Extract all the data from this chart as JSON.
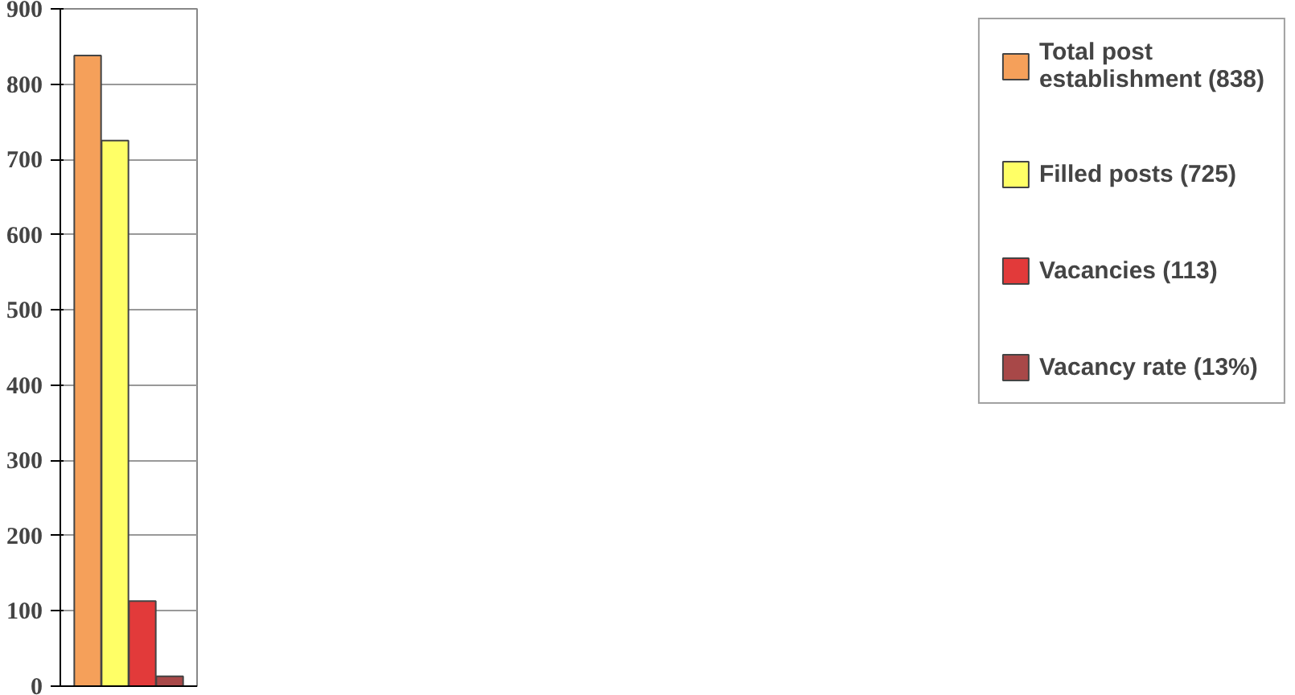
{
  "chart_data": {
    "type": "bar",
    "categories": [
      null
    ],
    "series": [
      {
        "name": "Total post establishment (838)",
        "color": "#f5a05a",
        "values": [
          838
        ]
      },
      {
        "name": "Filled posts (725)",
        "color": "#ffff66",
        "values": [
          725
        ]
      },
      {
        "name": "Vacancies (113)",
        "color": "#e23a3a",
        "values": [
          113
        ]
      },
      {
        "name": "Vacancy rate (13%)",
        "color": "#a84848",
        "values": [
          13
        ]
      }
    ],
    "ylim": [
      0,
      900
    ],
    "yticks": [
      0,
      100,
      200,
      300,
      400,
      500,
      600,
      700,
      800,
      900
    ],
    "grid": "y",
    "legend": "right"
  }
}
